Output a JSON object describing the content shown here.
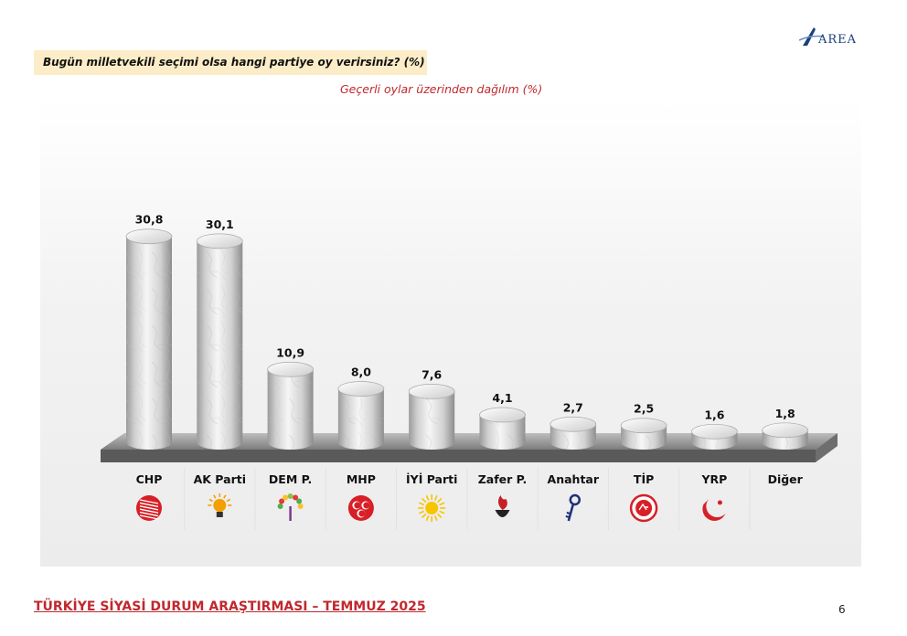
{
  "brand": {
    "logo_text": "AREA"
  },
  "question": "Bugün milletvekili seçimi olsa hangi partiye oy verirsiniz? (%)",
  "chart_data": {
    "type": "bar",
    "title": "Geçerli oylar üzerinden dağılım (%)",
    "categories": [
      "CHP",
      "AK Parti",
      "DEM P.",
      "MHP",
      "İYİ Parti",
      "Zafer P.",
      "Anahtar",
      "TİP",
      "YRP",
      "Diğer"
    ],
    "values": [
      30.8,
      30.1,
      10.9,
      8.0,
      7.6,
      4.1,
      2.7,
      2.5,
      1.6,
      1.8
    ],
    "value_labels": [
      "30,8",
      "30,1",
      "10,9",
      "8,0",
      "7,6",
      "4,1",
      "2,7",
      "2,5",
      "1,6",
      "1,8"
    ],
    "ylim": [
      0,
      35
    ],
    "grid": false,
    "legend": "none",
    "bar_style": "marble-cylinder",
    "party_icons": [
      "chp-six-arrows-icon",
      "akp-bulb-icon",
      "dem-tree-icon",
      "mhp-crescents-icon",
      "iyi-sun-icon",
      "zafer-flame-icon",
      "anahtar-key-icon",
      "tip-seal-icon",
      "yrp-crescent-icon",
      ""
    ],
    "icon_colors": [
      "#d81f26",
      "#f3a000",
      "#7a3a8c",
      "#d81f26",
      "#f7c500",
      "#c62026",
      "#1e2f7a",
      "#d81f26",
      "#d81f26",
      ""
    ]
  },
  "footer": {
    "title": "TÜRKİYE SİYASİ DURUM ARAŞTIRMASI – TEMMUZ 2025",
    "page_number": "6"
  }
}
